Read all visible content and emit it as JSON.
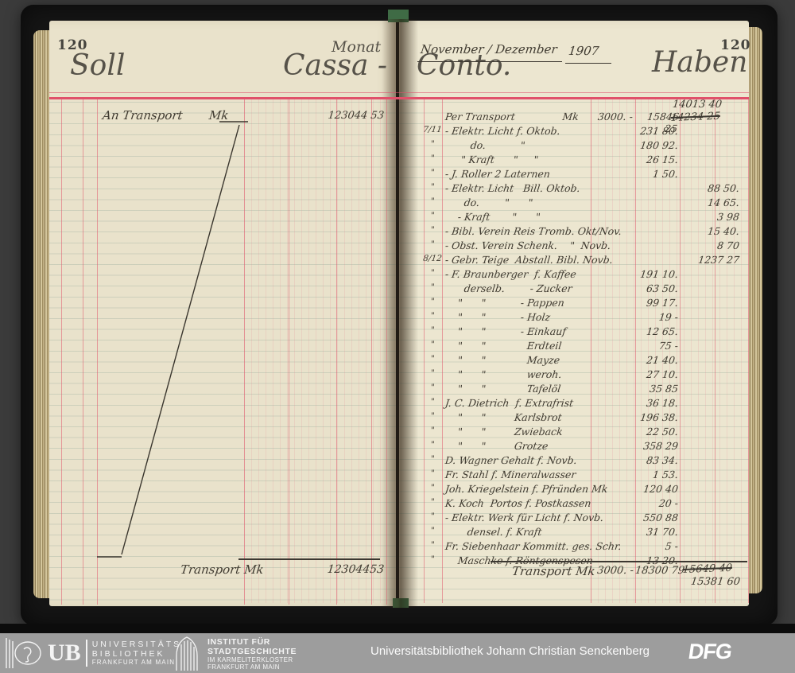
{
  "palette": {
    "paper": "#e9e2cb",
    "rule_red": "#e0506a",
    "ink": "#403b31",
    "footer_gray": "#9d9d9d",
    "background": "#3b3b3b"
  },
  "header": {
    "left_page_number": "120",
    "right_page_number": "120",
    "soll": "Soll",
    "cassa": "Cassa -",
    "conto": "Conto.",
    "haben": "Haben",
    "monat_label": "Monat",
    "monat_value": "November / Dezember",
    "year": "1907"
  },
  "left_page": {
    "entry_text": "An Transport       Mk",
    "entry_amount": "123044 53",
    "bottom_label": "Transport Mk",
    "bottom_amount": "12304453"
  },
  "right_page": {
    "rows": [
      {
        "d": "",
        "t": "Per Transport               Mk",
        "c1": "3000. -",
        "c2": "15846 25",
        "c3": ""
      },
      {
        "d": "7/11",
        "t": "- Elektr. Licht f. Oktob.",
        "c1": "",
        "c2": "231 80.",
        "c3": ""
      },
      {
        "d": "\"",
        "t": "        do.           \"",
        "c1": "",
        "c2": "180 92.",
        "c3": ""
      },
      {
        "d": "\"",
        "t": "     \" Kraft      \"     \"",
        "c1": "",
        "c2": "26 15.",
        "c3": ""
      },
      {
        "d": "\"",
        "t": "- J. Roller 2 Laternen",
        "c1": "",
        "c2": "1 50.",
        "c3": ""
      },
      {
        "d": "\"",
        "t": "- Elektr. Licht   Bill. Oktob.",
        "c1": "",
        "c2": "",
        "c3": "88 50."
      },
      {
        "d": "\"",
        "t": "      do.        \"      \"",
        "c1": "",
        "c2": "",
        "c3": "14 65."
      },
      {
        "d": "\"",
        "t": "    - Kraft       \"      \"",
        "c1": "",
        "c2": "",
        "c3": "3 98"
      },
      {
        "d": "\"",
        "t": "- Bibl. Verein Reis Tromb. Okt/Nov.",
        "c1": "",
        "c2": "",
        "c3": "15 40."
      },
      {
        "d": "\"",
        "t": "- Obst. Verein Schenk.    \"  Novb.",
        "c1": "",
        "c2": "",
        "c3": "8 70"
      },
      {
        "d": "8/12",
        "t": "- Gebr. Teige  Abstall. Bibl. Novb.",
        "c1": "",
        "c2": "",
        "c3": "1237 27"
      },
      {
        "d": "\"",
        "t": "- F. Braunberger  f. Kaffee",
        "c1": "",
        "c2": "191 10.",
        "c3": ""
      },
      {
        "d": "\"",
        "t": "      derselb.        - Zucker",
        "c1": "",
        "c2": "63 50.",
        "c3": ""
      },
      {
        "d": "\"",
        "t": "    \"      \"           - Pappen",
        "c1": "",
        "c2": "99 17.",
        "c3": ""
      },
      {
        "d": "\"",
        "t": "    \"      \"           - Holz",
        "c1": "",
        "c2": "19 -",
        "c3": ""
      },
      {
        "d": "\"",
        "t": "    \"      \"           - Einkauf",
        "c1": "",
        "c2": "12 65.",
        "c3": ""
      },
      {
        "d": "\"",
        "t": "    \"      \"             Erdteil",
        "c1": "",
        "c2": "75 -",
        "c3": ""
      },
      {
        "d": "\"",
        "t": "    \"      \"             Mayze",
        "c1": "",
        "c2": "21 40.",
        "c3": ""
      },
      {
        "d": "\"",
        "t": "    \"      \"             weroh.",
        "c1": "",
        "c2": "27 10.",
        "c3": ""
      },
      {
        "d": "\"",
        "t": "    \"      \"             Tafelöl",
        "c1": "",
        "c2": "35 85",
        "c3": ""
      },
      {
        "d": "\"",
        "t": "J. C. Dietrich  f. Extrafrist",
        "c1": "",
        "c2": "36 18.",
        "c3": ""
      },
      {
        "d": "\"",
        "t": "    \"      \"         Karlsbrot",
        "c1": "",
        "c2": "196 38.",
        "c3": ""
      },
      {
        "d": "\"",
        "t": "    \"      \"         Zwieback",
        "c1": "",
        "c2": "22 50.",
        "c3": ""
      },
      {
        "d": "\"",
        "t": "    \"      \"         Grotze",
        "c1": "",
        "c2": "358 29",
        "c3": ""
      },
      {
        "d": "\"",
        "t": "D. Wagner Gehalt f. Novb.",
        "c1": "",
        "c2": "83 34.",
        "c3": ""
      },
      {
        "d": "\"",
        "t": "Fr. Stahl f. Mineralwasser",
        "c1": "",
        "c2": "1 53.",
        "c3": ""
      },
      {
        "d": "\"",
        "t": "Joh. Kriegelstein f. Pfründen Mk",
        "c1": "",
        "c2": "120 40",
        "c3": ""
      },
      {
        "d": "\"",
        "t": "K. Koch  Portos f. Postkassen",
        "c1": "",
        "c2": "20 -",
        "c3": ""
      },
      {
        "d": "\"",
        "t": "- Elektr. Werk für Licht f. Novb.",
        "c1": "",
        "c2": "550 88",
        "c3": ""
      },
      {
        "d": "\"",
        "t": "       densel. f. Kraft",
        "c1": "",
        "c2": "31 70.",
        "c3": ""
      },
      {
        "d": "\"",
        "t": "Fr. Siebenhaar Kommitt. ges. Schr.",
        "c1": "",
        "c2": "5 -",
        "c3": ""
      },
      {
        "d": "\"",
        "t": "    Maschke f. Röntgenspesen",
        "c1": "",
        "c2": "13 20.",
        "c3": ""
      }
    ],
    "correction_top": "14013 40",
    "correction_struck": "14234 25",
    "bottom_label": "Transport Mk",
    "bottom_c1": "3000. -",
    "bottom_c2": "18300 79",
    "bottom_struck": "15649 40",
    "bottom_corrected": "15381 60"
  },
  "footer_bar": {
    "ub_mark": "UB",
    "ub_lines": {
      "l1": "UNIVERSITÄTS",
      "l2": "BIBLIOTHEK",
      "l3": "FRANKFURT AM MAIN"
    },
    "inst_lines": {
      "l1": "INSTITUT FÜR",
      "l2": "STADTGESCHICHTE",
      "l3": "IM KARMELITERKLOSTER",
      "l4": "FRANKFURT AM MAIN"
    },
    "library": "Universitätsbibliothek Johann Christian Senckenberg",
    "dfg": "DFG"
  }
}
